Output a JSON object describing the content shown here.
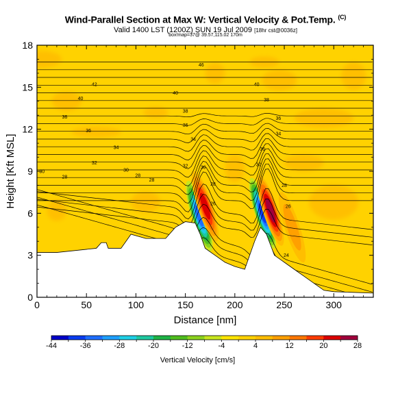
{
  "header": {
    "title": "Wind-Parallel Section at Max W: Vertical Velocity & Pot.Temp.",
    "copyright": "(C)",
    "valid_line": "Valid 1400 LST (1200Z) SUN 19 Jul 2009",
    "valid_note": "[18hr cst@0036z]",
    "info_line": "box!map=37@ 39.57,115.02 170m"
  },
  "chart_data": {
    "type": "heatmap",
    "title": "Wind-Parallel Section at Max W: Vertical Velocity & Pot.Temp.",
    "xlabel": "Distance [nm]",
    "ylabel": "Height [Kft MSL]",
    "xlim": [
      0,
      340
    ],
    "ylim": [
      0,
      18
    ],
    "x_ticks": [
      0,
      50,
      100,
      150,
      200,
      250,
      300
    ],
    "y_ticks": [
      0,
      3,
      6,
      9,
      12,
      15,
      18
    ],
    "terrain_kft": [
      [
        0,
        3.2
      ],
      [
        20,
        3.2
      ],
      [
        60,
        3.5
      ],
      [
        65,
        3.9
      ],
      [
        70,
        3.9
      ],
      [
        72,
        3.5
      ],
      [
        85,
        3.5
      ],
      [
        90,
        4.0
      ],
      [
        95,
        4.5
      ],
      [
        110,
        4.2
      ],
      [
        130,
        4.2
      ],
      [
        140,
        5.0
      ],
      [
        150,
        5.4
      ],
      [
        160,
        5.3
      ],
      [
        165,
        4.5
      ],
      [
        170,
        3.5
      ],
      [
        180,
        3.0
      ],
      [
        190,
        2.5
      ],
      [
        200,
        2.2
      ],
      [
        210,
        2.0
      ],
      [
        220,
        4.0
      ],
      [
        226,
        5.0
      ],
      [
        232,
        4.5
      ],
      [
        240,
        3.0
      ],
      [
        250,
        2.5
      ],
      [
        260,
        2.0
      ],
      [
        270,
        1.5
      ],
      [
        280,
        1.0
      ],
      [
        290,
        0.5
      ],
      [
        300,
        0.4
      ],
      [
        340,
        0.3
      ]
    ],
    "w_features": [
      {
        "x": 164,
        "y": 5.8,
        "w": -32
      },
      {
        "x": 170,
        "y": 6.5,
        "w": 20
      },
      {
        "x": 228,
        "y": 6.0,
        "w": -36
      },
      {
        "x": 236,
        "y": 6.2,
        "w": 24
      },
      {
        "x": 258,
        "y": 5.0,
        "w": 8
      }
    ],
    "contour_labels": [
      {
        "x": 166,
        "y": 16.6,
        "text": "46"
      },
      {
        "x": 58,
        "y": 15.2,
        "text": "42"
      },
      {
        "x": 222,
        "y": 15.2,
        "text": "40"
      },
      {
        "x": 140,
        "y": 14.6,
        "text": "40"
      },
      {
        "x": 44,
        "y": 14.2,
        "text": "40"
      },
      {
        "x": 232,
        "y": 14.1,
        "text": "38"
      },
      {
        "x": 150,
        "y": 13.3,
        "text": "38"
      },
      {
        "x": 28,
        "y": 12.9,
        "text": "36"
      },
      {
        "x": 244,
        "y": 12.8,
        "text": "36"
      },
      {
        "x": 150,
        "y": 12.3,
        "text": "36"
      },
      {
        "x": 52,
        "y": 11.9,
        "text": "36"
      },
      {
        "x": 244,
        "y": 11.7,
        "text": "34"
      },
      {
        "x": 158,
        "y": 11.3,
        "text": "34"
      },
      {
        "x": 80,
        "y": 10.7,
        "text": "34"
      },
      {
        "x": 228,
        "y": 10.6,
        "text": "36"
      },
      {
        "x": 58,
        "y": 9.6,
        "text": "32"
      },
      {
        "x": 224,
        "y": 9.5,
        "text": "30"
      },
      {
        "x": 150,
        "y": 9.4,
        "text": "32"
      },
      {
        "x": 168,
        "y": 9.3,
        "text": "30"
      },
      {
        "x": 90,
        "y": 9.1,
        "text": "30"
      },
      {
        "x": 5,
        "y": 9.0,
        "text": "30"
      },
      {
        "x": 28,
        "y": 8.6,
        "text": "28"
      },
      {
        "x": 102,
        "y": 8.7,
        "text": "28"
      },
      {
        "x": 116,
        "y": 8.4,
        "text": "28"
      },
      {
        "x": 178,
        "y": 8.1,
        "text": "28"
      },
      {
        "x": 250,
        "y": 8.0,
        "text": "28"
      },
      {
        "x": 178,
        "y": 6.7,
        "text": "26"
      },
      {
        "x": 254,
        "y": 6.5,
        "text": "26"
      },
      {
        "x": 252,
        "y": 3.0,
        "text": "24"
      }
    ],
    "colorbar": {
      "label": "Vertical Velocity [cm/s]",
      "tick_labels": [
        "-44",
        "-36",
        "-28",
        "-20",
        "-12",
        "-4",
        "4",
        "12",
        "20",
        "28"
      ],
      "bins": [
        -44,
        -40,
        -36,
        -32,
        -28,
        -24,
        -20,
        -16,
        -12,
        -8,
        -4,
        0,
        4,
        8,
        12,
        16,
        20,
        24,
        28
      ],
      "colors": [
        "#0000c8",
        "#0a3cf0",
        "#1e6eff",
        "#1ea0ff",
        "#1ecfe6",
        "#1ec8a0",
        "#1eb446",
        "#50be1e",
        "#8cd21e",
        "#c8e61e",
        "#ffe600",
        "#ffd200",
        "#ffbe00",
        "#ffa000",
        "#ff7800",
        "#ff3c00",
        "#dc0000",
        "#a0003c"
      ]
    }
  }
}
